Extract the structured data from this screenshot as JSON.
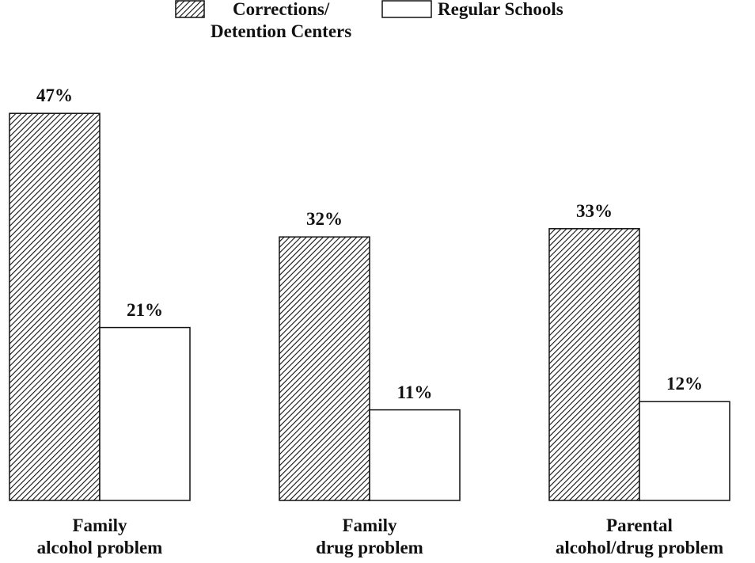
{
  "chart_data": {
    "type": "bar",
    "categories": [
      "Family\nalcohol problem",
      "Family\ndrug problem",
      "Parental\nalcohol/drug problem"
    ],
    "series": [
      {
        "name": "Corrections/\nDetention Centers",
        "color": "#000000",
        "hatch": true,
        "values": [
          47,
          32,
          33
        ],
        "value_labels": [
          "47%",
          "32%",
          "33%"
        ]
      },
      {
        "name": "Regular Schools",
        "color": "#ffffff",
        "hatch": false,
        "values": [
          21,
          11,
          12
        ],
        "value_labels": [
          "21%",
          "11%",
          "12%"
        ]
      }
    ],
    "ylim": [
      0,
      50
    ]
  }
}
